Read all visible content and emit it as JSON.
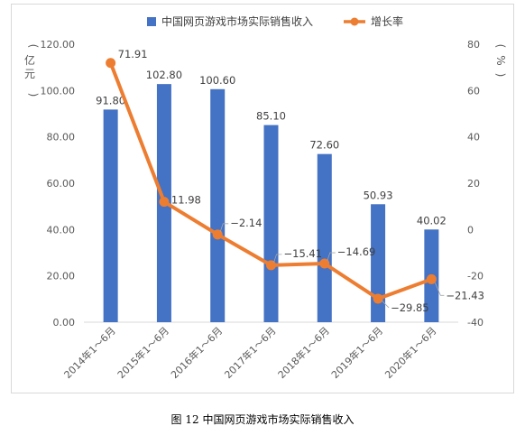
{
  "caption": "图 12 中国网页游戏市场实际销售收入",
  "chart_data": {
    "type": "bar",
    "categories": [
      "2014年1～6月",
      "2015年1～6月",
      "2016年1～6月",
      "2017年1～6月",
      "2018年1～6月",
      "2019年1～6月",
      "2020年1～6月"
    ],
    "series": [
      {
        "name": "中国网页游戏市场实际销售收入",
        "type": "bar",
        "axis": "left",
        "color": "#4472c4",
        "values": [
          91.8,
          102.8,
          100.6,
          85.1,
          72.6,
          50.93,
          40.02
        ],
        "labels": [
          "91.80",
          "102.80",
          "100.60",
          "85.10",
          "72.60",
          "50.93",
          "40.02"
        ]
      },
      {
        "name": "增长率",
        "type": "line",
        "axis": "right",
        "color": "#ed7d31",
        "values": [
          71.91,
          11.98,
          -2.14,
          -15.41,
          -14.69,
          -29.85,
          -21.43
        ],
        "labels": [
          "71.91",
          "11.98",
          "−2.14",
          "−15.41",
          "−14.69",
          "−29.85",
          "−21.43"
        ]
      }
    ],
    "y_left": {
      "label": "亿元",
      "label_chars": [
        "亿",
        "元"
      ],
      "ylim": [
        0,
        120
      ],
      "ticks": [
        "0.00",
        "20.00",
        "40.00",
        "60.00",
        "80.00",
        "100.00",
        "120.00"
      ]
    },
    "y_right": {
      "label": "%",
      "ylim": [
        -40,
        80
      ],
      "ticks": [
        "-40",
        "-20",
        "0",
        "20",
        "40",
        "60",
        "80"
      ]
    },
    "grid": false,
    "legend_position": "top"
  }
}
